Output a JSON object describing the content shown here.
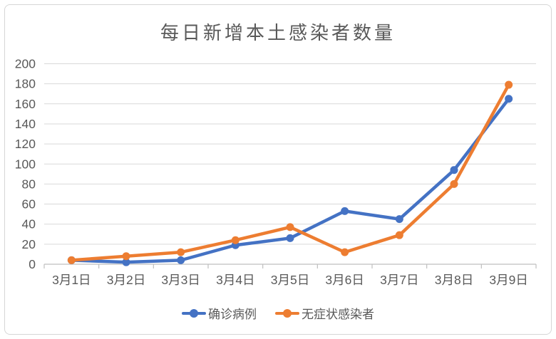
{
  "chart_data": {
    "type": "line",
    "title": "每日新增本土感染者数量",
    "categories": [
      "3月1日",
      "3月2日",
      "3月3日",
      "3月4日",
      "3月5日",
      "3月6日",
      "3月7日",
      "3月8日",
      "3月9日"
    ],
    "series": [
      {
        "name": "确诊病例",
        "color": "#4472C4",
        "values": [
          4,
          2,
          4,
          19,
          26,
          53,
          45,
          94,
          165
        ]
      },
      {
        "name": "无症状感染者",
        "color": "#ED7D31",
        "values": [
          4,
          8,
          12,
          24,
          37,
          12,
          29,
          80,
          179
        ]
      }
    ],
    "xlabel": "",
    "ylabel": "",
    "ylim": [
      0,
      200
    ],
    "yticks": [
      0,
      20,
      40,
      60,
      80,
      100,
      120,
      140,
      160,
      180,
      200
    ],
    "grid": true,
    "legend_position": "bottom",
    "marker": "circle"
  },
  "colors": {
    "text": "#595959",
    "gridline": "#D9D9D9",
    "axis_line": "#BFBFBF",
    "frame_border": "#D6D6D6",
    "background": "#FFFFFF",
    "series_blue": "#4472C4",
    "series_orange": "#ED7D31"
  }
}
